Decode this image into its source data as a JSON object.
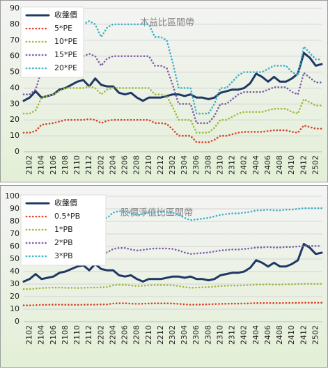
{
  "chart_data": [
    {
      "type": "line",
      "title": "本益比區間帶",
      "legend": "upper left",
      "grid": true,
      "categories": [
        null,
        "2102",
        null,
        "2104",
        null,
        "2106",
        null,
        "2108",
        null,
        "2110",
        null,
        "2112",
        null,
        "2202",
        null,
        "2204",
        null,
        "2206",
        null,
        "2208",
        null,
        "2210",
        null,
        "2212",
        null,
        "2302",
        null,
        "2304",
        null,
        "2306",
        null,
        "2308",
        null,
        "2310",
        null,
        "2312",
        null,
        "2402",
        null,
        "2404",
        null,
        "2406",
        null,
        "2408",
        null,
        "2410",
        null,
        "2412",
        null,
        "2502",
        null
      ],
      "ylim": [
        0,
        90
      ],
      "yticks": [
        0,
        10,
        20,
        30,
        40,
        50,
        60,
        70,
        80,
        90
      ],
      "series": [
        {
          "name": "收盤價",
          "color": "#1f3864",
          "values": [
            32,
            34,
            38,
            34,
            35,
            36,
            39,
            40,
            42,
            44,
            45,
            41,
            46,
            42,
            41,
            41,
            37,
            36,
            37,
            34,
            32,
            34,
            34,
            34,
            35,
            36,
            36,
            35,
            36,
            34,
            34,
            33,
            34,
            37,
            38,
            39,
            39,
            40,
            43,
            49,
            47,
            44,
            47,
            44,
            44,
            46,
            49,
            62,
            59,
            54,
            55
          ]
        },
        {
          "name": "5*PE",
          "color": "#d9412c",
          "values": [
            12,
            12,
            13,
            17,
            17.5,
            18,
            19,
            20,
            20,
            20,
            20,
            20.5,
            20,
            18,
            19.5,
            20,
            20,
            20,
            20,
            20,
            20,
            20,
            18,
            18,
            17.5,
            14,
            10,
            10,
            10,
            6,
            6,
            6,
            7.5,
            10,
            10,
            11,
            12,
            12.5,
            12.5,
            12.5,
            12.5,
            13,
            13.5,
            13.5,
            13.5,
            12.5,
            12,
            16.5,
            15.5,
            14.5,
            14.5
          ]
        },
        {
          "name": "10*PE",
          "color": "#9bbb3b",
          "values": [
            24,
            24,
            26,
            34,
            35,
            36,
            38,
            40,
            40,
            40,
            40,
            41,
            40,
            36,
            39,
            40,
            40,
            40,
            40,
            40,
            40,
            40,
            36,
            36,
            35,
            28,
            20,
            20,
            20,
            12,
            12,
            12,
            15,
            20,
            20,
            22,
            24,
            25,
            25,
            25,
            25,
            26,
            27,
            27,
            27,
            25,
            24,
            33,
            31,
            29,
            29
          ]
        },
        {
          "name": "15*PE",
          "color": "#7d5fa8",
          "values": [
            36,
            36,
            39,
            51,
            52.5,
            54,
            57,
            60,
            60,
            60,
            60,
            61.5,
            60,
            54,
            58.5,
            60,
            60,
            60,
            60,
            60,
            60,
            60,
            54,
            54,
            52.5,
            42,
            30,
            30,
            30,
            18,
            18,
            18,
            22.5,
            30,
            30,
            33,
            36,
            37.5,
            37.5,
            37.5,
            37.5,
            39,
            40.5,
            40.5,
            40.5,
            37.5,
            36,
            49.5,
            46.5,
            43.5,
            43.5
          ]
        },
        {
          "name": "20*PE",
          "color": "#3fb0c8",
          "values": [
            48,
            48,
            52,
            68,
            70,
            72,
            76,
            80,
            80,
            80,
            80,
            82,
            80,
            72,
            78,
            80,
            80,
            80,
            80,
            80,
            80,
            80,
            72,
            72,
            70,
            56,
            40,
            40,
            40,
            24,
            24,
            24,
            30,
            40,
            40,
            44,
            48,
            50,
            50,
            50,
            50,
            52,
            54,
            54,
            54,
            50,
            48,
            66,
            62,
            58,
            58
          ]
        }
      ]
    },
    {
      "type": "line",
      "title": "股價淨值比區間帶",
      "legend": "upper left",
      "grid": true,
      "categories": [
        null,
        "2102",
        null,
        "2104",
        null,
        "2106",
        null,
        "2108",
        null,
        "2110",
        null,
        "2112",
        null,
        "2202",
        null,
        "2204",
        null,
        "2206",
        null,
        "2208",
        null,
        "2210",
        null,
        "2212",
        null,
        "2302",
        null,
        "2304",
        null,
        "2306",
        null,
        "2308",
        null,
        "2310",
        null,
        "2312",
        null,
        "2402",
        null,
        "2404",
        null,
        "2406",
        null,
        "2408",
        null,
        "2410",
        null,
        "2412",
        null,
        "2502",
        null
      ],
      "ylim": [
        0,
        100
      ],
      "yticks": [
        0,
        10,
        20,
        30,
        40,
        50,
        60,
        70,
        80,
        90,
        100
      ],
      "series": [
        {
          "name": "收盤價",
          "color": "#1f3864",
          "values": [
            32,
            34,
            38,
            34,
            35,
            36,
            39,
            40,
            42,
            44,
            45,
            41,
            46,
            42,
            41,
            41,
            37,
            36,
            37,
            34,
            32,
            34,
            34,
            34,
            35,
            36,
            36,
            35,
            36,
            34,
            34,
            33,
            34,
            37,
            38,
            39,
            39,
            40,
            43,
            49,
            47,
            44,
            47,
            44,
            44,
            46,
            49,
            62,
            59,
            54,
            55
          ]
        },
        {
          "name": "0.5*PB",
          "color": "#d9412c",
          "values": [
            13,
            13,
            13.2,
            13.4,
            13.5,
            13.6,
            13.6,
            13.5,
            13.5,
            13.4,
            13.5,
            13.6,
            13.6,
            13.7,
            13.8,
            14.5,
            14.7,
            14.7,
            14.4,
            14.2,
            14.3,
            14.5,
            14.6,
            14.6,
            14.6,
            14.5,
            14.2,
            13.8,
            13.5,
            13.6,
            13.7,
            13.8,
            14,
            14.2,
            14.3,
            14.4,
            14.4,
            14.5,
            14.6,
            14.8,
            14.8,
            14.9,
            14.8,
            14.8,
            14.9,
            14.9,
            15,
            15.1,
            15.1,
            15.1,
            15.1
          ]
        },
        {
          "name": "1*PB",
          "color": "#9bbb3b",
          "values": [
            26,
            26,
            26.4,
            26.8,
            27,
            27.2,
            27.2,
            27,
            27,
            26.8,
            27,
            27.2,
            27.2,
            27.4,
            27.6,
            29,
            29.4,
            29.4,
            28.8,
            28.4,
            28.6,
            29,
            29.2,
            29.2,
            29.2,
            29,
            28.4,
            27.6,
            27,
            27.2,
            27.4,
            27.6,
            28,
            28.4,
            28.6,
            28.8,
            28.8,
            29,
            29.2,
            29.6,
            29.6,
            29.8,
            29.6,
            29.6,
            29.8,
            29.8,
            30,
            30.2,
            30.2,
            30.2,
            30.2
          ]
        },
        {
          "name": "2*PB",
          "color": "#7d5fa8",
          "values": [
            52,
            52,
            52.8,
            53.6,
            54,
            54.4,
            54.4,
            54,
            54,
            53.6,
            54,
            54.4,
            54.4,
            54.8,
            55.2,
            58,
            58.8,
            58.8,
            57.6,
            56.8,
            57.2,
            58,
            58.4,
            58.4,
            58.4,
            58,
            56.8,
            55.2,
            54,
            54.4,
            54.8,
            55.2,
            56,
            56.8,
            57.2,
            57.6,
            57.6,
            58,
            58.4,
            59.2,
            59.2,
            59.6,
            59.2,
            59.2,
            59.6,
            59.6,
            60,
            60.4,
            60.4,
            60.4,
            60.4
          ]
        },
        {
          "name": "3*PB",
          "color": "#3fb0c8",
          "values": [
            78,
            78,
            79.2,
            80.4,
            81,
            81.6,
            81.6,
            81,
            81,
            80.4,
            81,
            81.6,
            81.6,
            82.2,
            82.8,
            87,
            88.2,
            88.2,
            86.4,
            85.2,
            85.8,
            87,
            87.6,
            87.6,
            87.6,
            87,
            85.2,
            82.8,
            81,
            81.6,
            82.2,
            82.8,
            84,
            85.2,
            85.8,
            86.4,
            86.4,
            87,
            87.6,
            88.8,
            88.8,
            89.4,
            88.8,
            88.8,
            89.4,
            89.4,
            90,
            90.6,
            90.6,
            90.6,
            90.6
          ]
        }
      ]
    }
  ]
}
